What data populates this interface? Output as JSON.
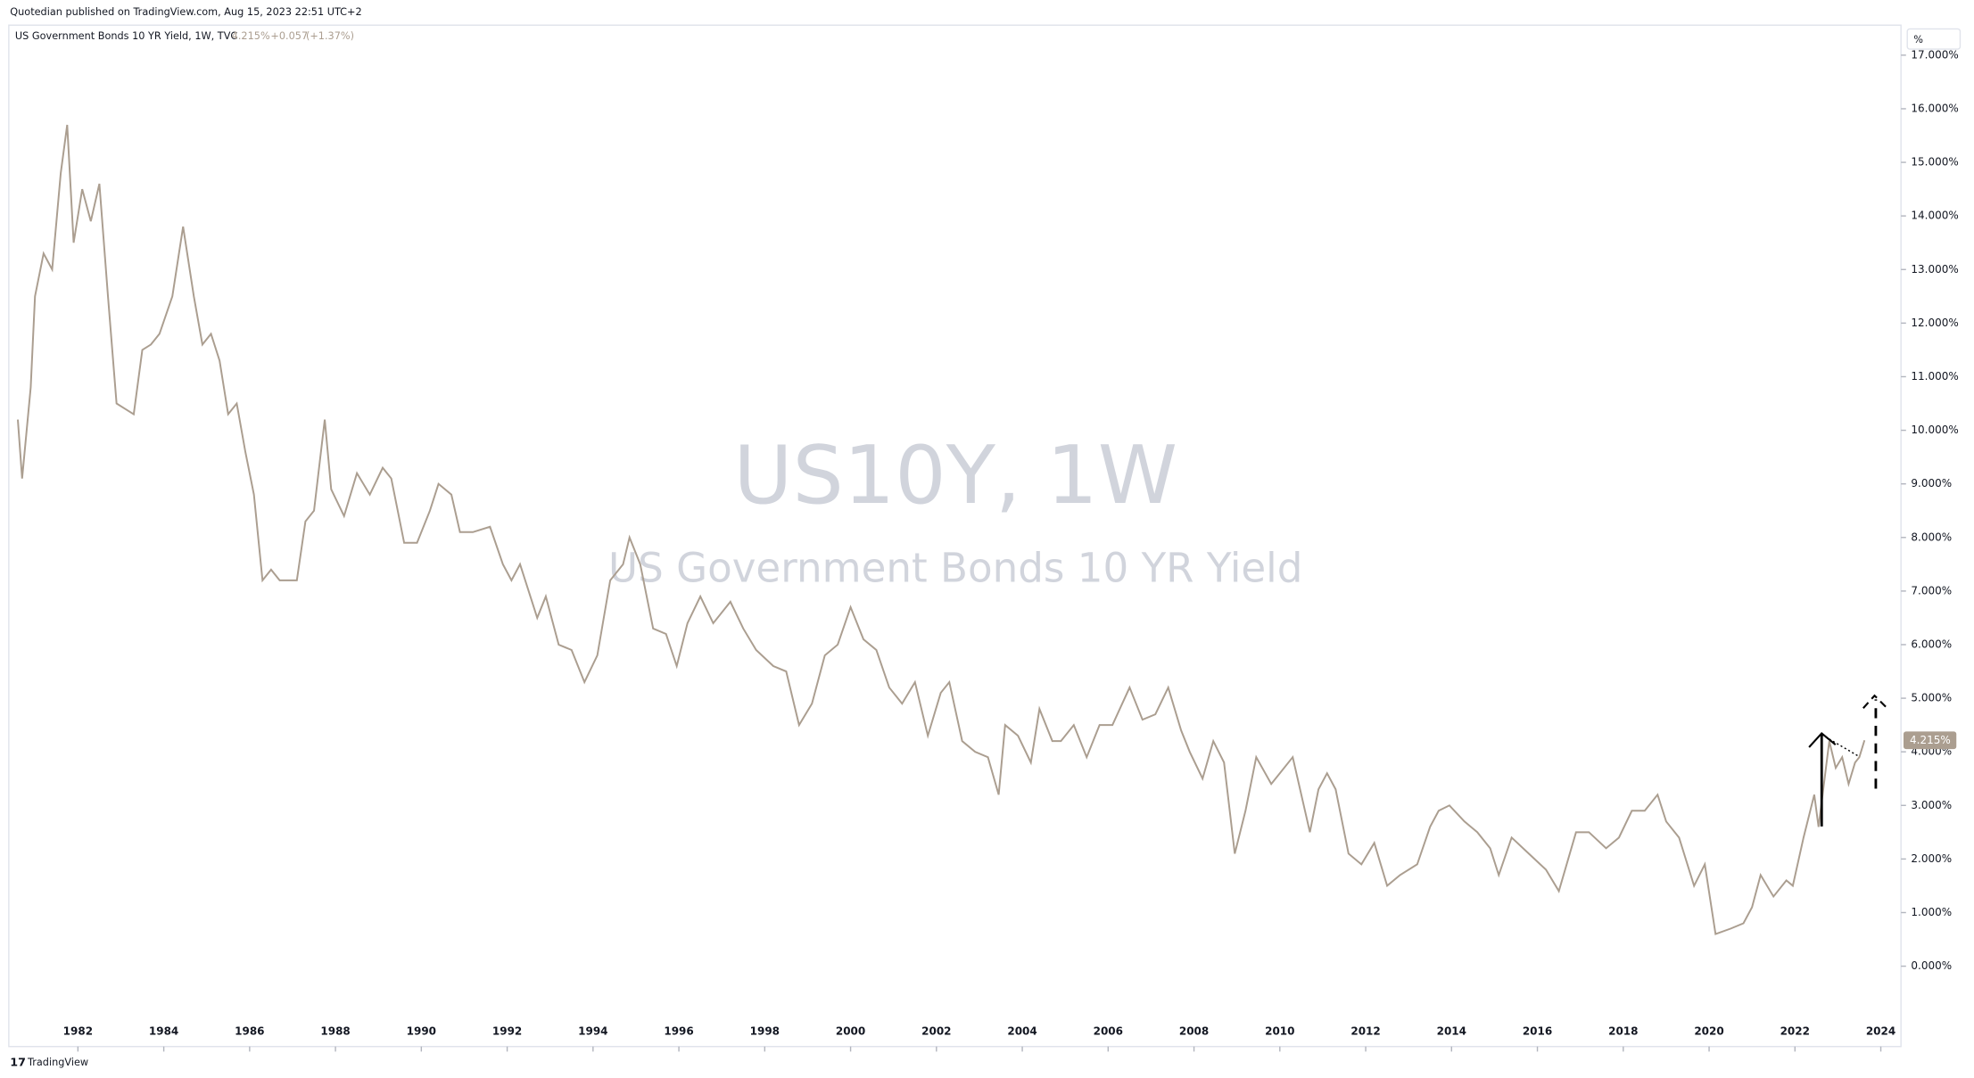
{
  "publisher": "Quotedian published on TradingView.com, Aug 15, 2023 22:51 UTC+2",
  "footer": "TradingView",
  "chart_data": {
    "type": "line",
    "title": "US Government Bonds 10 YR Yield, 1W, TVC",
    "last_price": {
      "value": 4.215,
      "label": "4.215%"
    },
    "change": "+0.057",
    "change_pct": "(+1.37%)",
    "watermark_symbol": "US10Y, 1W",
    "watermark_name": "US Government Bonds 10 YR Yield",
    "y_unit": "%",
    "color": "#ab9e90",
    "xlim": [
      1980.39,
      2024.47
    ],
    "xticks": [
      1982,
      1984,
      1986,
      1988,
      1990,
      1992,
      1994,
      1996,
      1998,
      2000,
      2002,
      2004,
      2006,
      2008,
      2010,
      2012,
      2014,
      2016,
      2018,
      2020,
      2022,
      2024
    ],
    "ylim": [
      -1.5,
      17.56
    ],
    "yticks": [
      {
        "value": 0,
        "label": "0.000%"
      },
      {
        "value": 1,
        "label": "1.000%"
      },
      {
        "value": 2,
        "label": "2.000%"
      },
      {
        "value": 3,
        "label": "3.000%"
      },
      {
        "value": 4,
        "label": "4.000%"
      },
      {
        "value": 5,
        "label": "5.000%"
      },
      {
        "value": 6,
        "label": "6.000%"
      },
      {
        "value": 7,
        "label": "7.000%"
      },
      {
        "value": 8,
        "label": "8.000%"
      },
      {
        "value": 9,
        "label": "9.000%"
      },
      {
        "value": 10,
        "label": "10.000%"
      },
      {
        "value": 11,
        "label": "11.000%"
      },
      {
        "value": 12,
        "label": "12.000%"
      },
      {
        "value": 13,
        "label": "13.000%"
      },
      {
        "value": 14,
        "label": "14.000%"
      },
      {
        "value": 15,
        "label": "15.000%"
      },
      {
        "value": 16,
        "label": "16.000%"
      },
      {
        "value": 17,
        "label": "17.000%"
      }
    ],
    "x": [
      1980.6,
      1980.7,
      1980.9,
      1981.0,
      1981.2,
      1981.4,
      1981.6,
      1981.75,
      1981.9,
      1982.1,
      1982.3,
      1982.5,
      1982.7,
      1982.9,
      1983.1,
      1983.3,
      1983.5,
      1983.7,
      1983.9,
      1984.2,
      1984.45,
      1984.7,
      1984.9,
      1985.1,
      1985.3,
      1985.5,
      1985.7,
      1985.9,
      1986.1,
      1986.3,
      1986.5,
      1986.7,
      1986.9,
      1987.1,
      1987.3,
      1987.5,
      1987.75,
      1987.9,
      1988.2,
      1988.5,
      1988.8,
      1989.1,
      1989.3,
      1989.6,
      1989.9,
      1990.2,
      1990.4,
      1990.7,
      1990.9,
      1991.2,
      1991.6,
      1991.9,
      1992.1,
      1992.3,
      1992.7,
      1992.9,
      1993.2,
      1993.5,
      1993.8,
      1994.1,
      1994.4,
      1994.7,
      1994.85,
      1995.1,
      1995.4,
      1995.7,
      1995.95,
      1996.2,
      1996.5,
      1996.8,
      1997.2,
      1997.5,
      1997.8,
      1998.2,
      1998.5,
      1998.8,
      1999.1,
      1999.4,
      1999.7,
      2000.0,
      2000.3,
      2000.6,
      2000.9,
      2001.2,
      2001.5,
      2001.8,
      2002.1,
      2002.3,
      2002.6,
      2002.9,
      2003.2,
      2003.45,
      2003.6,
      2003.9,
      2004.2,
      2004.4,
      2004.7,
      2004.9,
      2005.2,
      2005.5,
      2005.8,
      2006.1,
      2006.5,
      2006.8,
      2007.1,
      2007.4,
      2007.7,
      2007.9,
      2008.2,
      2008.45,
      2008.7,
      2008.95,
      2009.2,
      2009.45,
      2009.8,
      2010.3,
      2010.7,
      2010.9,
      2011.1,
      2011.3,
      2011.6,
      2011.9,
      2012.2,
      2012.5,
      2012.8,
      2013.2,
      2013.5,
      2013.7,
      2013.95,
      2014.3,
      2014.6,
      2014.9,
      2015.1,
      2015.4,
      2015.8,
      2016.2,
      2016.5,
      2016.9,
      2017.2,
      2017.6,
      2017.9,
      2018.2,
      2018.5,
      2018.8,
      2019.0,
      2019.3,
      2019.65,
      2019.9,
      2020.15,
      2020.5,
      2020.8,
      2021.0,
      2021.2,
      2021.5,
      2021.8,
      2021.95,
      2022.2,
      2022.45,
      2022.55,
      2022.8,
      2022.95,
      2023.1,
      2023.25,
      2023.4,
      2023.5,
      2023.62
    ],
    "values": [
      10.2,
      9.1,
      10.8,
      12.5,
      13.3,
      13.0,
      14.8,
      15.7,
      13.5,
      14.5,
      13.9,
      14.6,
      12.5,
      10.5,
      10.4,
      10.3,
      11.5,
      11.6,
      11.8,
      12.5,
      13.8,
      12.5,
      11.6,
      11.8,
      11.3,
      10.3,
      10.5,
      9.6,
      8.8,
      7.2,
      7.4,
      7.2,
      7.2,
      7.2,
      8.3,
      8.5,
      10.2,
      8.9,
      8.4,
      9.2,
      8.8,
      9.3,
      9.1,
      7.9,
      7.9,
      8.5,
      9.0,
      8.8,
      8.1,
      8.1,
      8.2,
      7.5,
      7.2,
      7.5,
      6.5,
      6.9,
      6.0,
      5.9,
      5.3,
      5.8,
      7.2,
      7.5,
      8.0,
      7.5,
      6.3,
      6.2,
      5.6,
      6.4,
      6.9,
      6.4,
      6.8,
      6.3,
      5.9,
      5.6,
      5.5,
      4.5,
      4.9,
      5.8,
      6.0,
      6.7,
      6.1,
      5.9,
      5.2,
      4.9,
      5.3,
      4.3,
      5.1,
      5.3,
      4.2,
      4.0,
      3.9,
      3.2,
      4.5,
      4.3,
      3.8,
      4.8,
      4.2,
      4.2,
      4.5,
      3.9,
      4.5,
      4.5,
      5.2,
      4.6,
      4.7,
      5.2,
      4.4,
      4.0,
      3.5,
      4.2,
      3.8,
      2.1,
      2.9,
      3.9,
      3.4,
      3.9,
      2.5,
      3.3,
      3.6,
      3.3,
      2.1,
      1.9,
      2.3,
      1.5,
      1.7,
      1.9,
      2.6,
      2.9,
      3.0,
      2.7,
      2.5,
      2.2,
      1.7,
      2.4,
      2.1,
      1.8,
      1.4,
      2.5,
      2.5,
      2.2,
      2.4,
      2.9,
      2.9,
      3.2,
      2.7,
      2.4,
      1.5,
      1.9,
      0.6,
      0.7,
      0.8,
      1.1,
      1.7,
      1.3,
      1.6,
      1.5,
      2.4,
      3.2,
      2.6,
      4.2,
      3.7,
      3.9,
      3.4,
      3.8,
      3.9,
      4.215
    ]
  }
}
